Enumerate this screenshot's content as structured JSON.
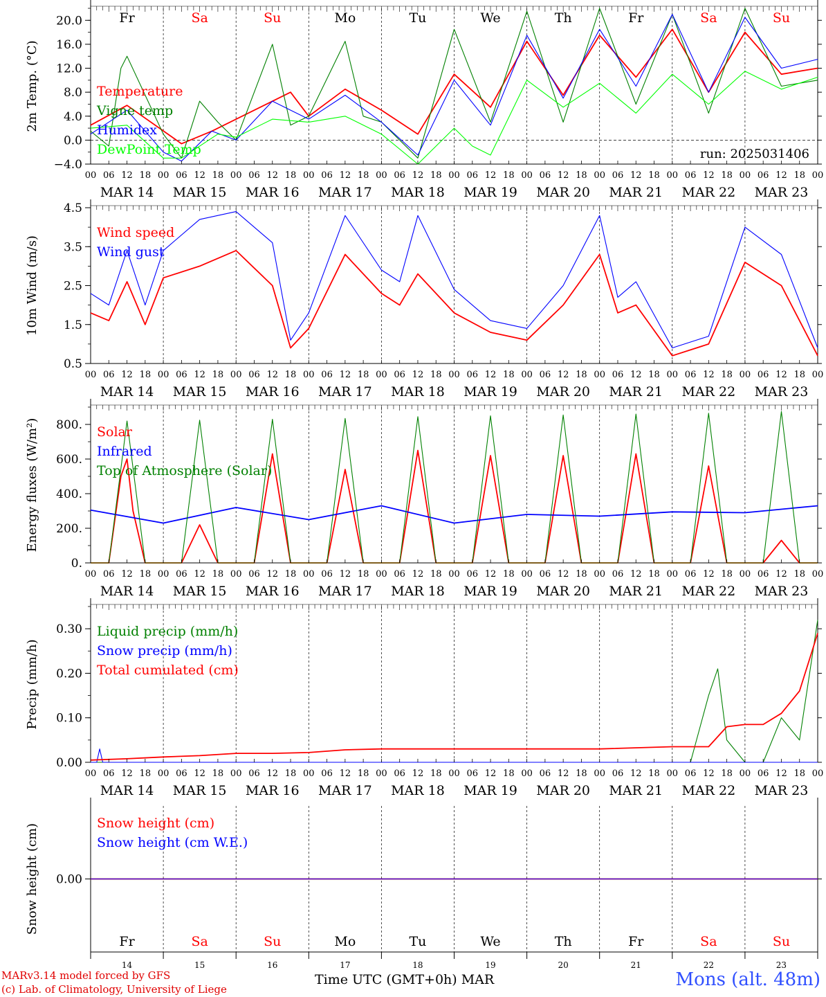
{
  "chart_data": [
    {
      "type": "line",
      "ylabel": "2m Temp. (°C)",
      "ylim": [
        -4,
        22
      ],
      "yticks": [
        "−4.0",
        "0.0",
        "4.0",
        "8.0",
        "12.0",
        "16.0",
        "20.0"
      ],
      "ytick_values": [
        -4,
        0,
        4,
        8,
        12,
        16,
        20
      ],
      "zero_line": true,
      "annotation": "run: 2025031406",
      "series": [
        {
          "name": "Temperature",
          "color": "#ff0000",
          "x": [
            0,
            12,
            30,
            40,
            66,
            72,
            84,
            96,
            108,
            120,
            132,
            144,
            156,
            168,
            180,
            192,
            204,
            216,
            228,
            240
          ],
          "y": [
            2.5,
            5.8,
            -0.6,
            1.5,
            8.0,
            4.0,
            8.5,
            5.0,
            1.0,
            11.0,
            5.5,
            16.5,
            7.5,
            17.5,
            10.5,
            18.5,
            8.0,
            18.0,
            11.0,
            12.0
          ]
        },
        {
          "name": "Vigne temp",
          "color": "#008000",
          "x": [
            0,
            6,
            10,
            12,
            24,
            30,
            36,
            42,
            48,
            60,
            66,
            72,
            84,
            90,
            96,
            108,
            120,
            132,
            144,
            156,
            168,
            180,
            192,
            204,
            216,
            228,
            240
          ],
          "y": [
            1.5,
            -1.0,
            12.0,
            14.0,
            1.0,
            -3.0,
            6.5,
            3.0,
            0.0,
            16.0,
            2.5,
            4.0,
            16.5,
            4.0,
            3.0,
            -3.0,
            18.5,
            3.0,
            21.5,
            3.0,
            22.0,
            6.0,
            21.0,
            4.5,
            22.0,
            9.0,
            10.0
          ]
        },
        {
          "name": "Humidex",
          "color": "#0000ff",
          "x": [
            0,
            12,
            24,
            30,
            40,
            48,
            60,
            66,
            72,
            84,
            96,
            108,
            120,
            132,
            144,
            156,
            168,
            180,
            192,
            204,
            216,
            228,
            240
          ],
          "y": [
            1.0,
            5.0,
            -2.0,
            -3.5,
            1.5,
            0.0,
            6.5,
            5.0,
            3.5,
            7.5,
            3.0,
            -2.5,
            10.0,
            2.5,
            17.5,
            7.0,
            18.5,
            9.0,
            21.0,
            8.0,
            20.5,
            12.0,
            13.5
          ]
        },
        {
          "name": "DewPoint Temp",
          "color": "#00ff00",
          "x": [
            0,
            12,
            24,
            30,
            42,
            48,
            60,
            72,
            84,
            96,
            108,
            120,
            126,
            132,
            144,
            156,
            168,
            180,
            192,
            204,
            216,
            228,
            240
          ],
          "y": [
            2.0,
            2.5,
            -3.0,
            -3.0,
            1.0,
            0.5,
            3.5,
            3.0,
            4.0,
            1.0,
            -4.0,
            2.0,
            -1.0,
            -2.5,
            10.0,
            5.5,
            9.5,
            4.5,
            11.0,
            6.0,
            11.5,
            8.5,
            10.5
          ]
        }
      ]
    },
    {
      "type": "line",
      "ylabel": "10m Wind (m/s)",
      "ylim": [
        0.5,
        4.5
      ],
      "yticks": [
        "0.5",
        "1.5",
        "2.5",
        "3.5",
        "4.5"
      ],
      "ytick_values": [
        0.5,
        1.5,
        2.5,
        3.5,
        4.5
      ],
      "series": [
        {
          "name": "Wind speed",
          "color": "#ff0000",
          "x": [
            0,
            6,
            12,
            18,
            24,
            36,
            48,
            60,
            66,
            72,
            84,
            96,
            102,
            108,
            120,
            132,
            144,
            156,
            168,
            174,
            180,
            192,
            204,
            216,
            228,
            240
          ],
          "y": [
            1.8,
            1.6,
            2.6,
            1.5,
            2.7,
            3.0,
            3.4,
            2.5,
            0.9,
            1.4,
            3.3,
            2.3,
            2.0,
            2.8,
            1.8,
            1.3,
            1.1,
            2.0,
            3.3,
            1.8,
            2.0,
            0.7,
            1.0,
            3.1,
            2.5,
            0.7
          ]
        },
        {
          "name": "Wind gust",
          "color": "#0000ff",
          "x": [
            0,
            6,
            12,
            18,
            24,
            36,
            48,
            60,
            66,
            72,
            84,
            96,
            102,
            108,
            120,
            132,
            144,
            156,
            168,
            174,
            180,
            192,
            204,
            216,
            228,
            240
          ],
          "y": [
            2.3,
            2.0,
            3.4,
            2.0,
            3.4,
            4.2,
            4.4,
            3.6,
            1.1,
            1.8,
            4.3,
            2.9,
            2.6,
            4.3,
            2.4,
            1.6,
            1.4,
            2.5,
            4.3,
            2.2,
            2.6,
            0.9,
            1.2,
            4.0,
            3.3,
            0.9
          ]
        }
      ]
    },
    {
      "type": "line",
      "ylabel": "Energy fluxes (W/m²)",
      "ylim": [
        0,
        900
      ],
      "yticks": [
        "0.",
        "200.",
        "400.",
        "600.",
        "800."
      ],
      "ytick_values": [
        0,
        200,
        400,
        600,
        800
      ],
      "series": [
        {
          "name": "Solar",
          "color": "#ff0000",
          "x": [
            0,
            6,
            10,
            12,
            14,
            18,
            24,
            30,
            36,
            42,
            48,
            54,
            60,
            66,
            72,
            78,
            84,
            90,
            96,
            102,
            108,
            114,
            120,
            126,
            132,
            138,
            144,
            150,
            156,
            162,
            168,
            174,
            180,
            186,
            192,
            198,
            204,
            210,
            216,
            222,
            228,
            234,
            240
          ],
          "y": [
            0,
            0,
            500,
            600,
            300,
            0,
            0,
            0,
            220,
            0,
            0,
            0,
            630,
            0,
            0,
            0,
            540,
            0,
            0,
            0,
            650,
            0,
            0,
            0,
            620,
            0,
            0,
            0,
            620,
            0,
            0,
            0,
            630,
            0,
            0,
            0,
            560,
            0,
            0,
            0,
            130,
            0,
            0
          ]
        },
        {
          "name": "Infrared",
          "color": "#0000ff",
          "x": [
            0,
            24,
            48,
            72,
            96,
            120,
            144,
            168,
            192,
            216,
            240
          ],
          "y": [
            305,
            230,
            320,
            250,
            330,
            230,
            280,
            270,
            295,
            290,
            330
          ]
        },
        {
          "name": "Top of Atmosphere (Solar)",
          "color": "#008000",
          "x": [
            0,
            6,
            12,
            18,
            24,
            30,
            36,
            42,
            48,
            54,
            60,
            66,
            72,
            78,
            84,
            90,
            96,
            102,
            108,
            114,
            120,
            126,
            132,
            138,
            144,
            150,
            156,
            162,
            168,
            174,
            180,
            186,
            192,
            198,
            204,
            210,
            216,
            222,
            228,
            234,
            240
          ],
          "y": [
            0,
            0,
            820,
            0,
            0,
            0,
            825,
            0,
            0,
            0,
            830,
            0,
            0,
            0,
            835,
            0,
            0,
            0,
            845,
            0,
            0,
            0,
            850,
            0,
            0,
            0,
            855,
            0,
            0,
            0,
            860,
            0,
            0,
            0,
            865,
            0,
            0,
            0,
            875,
            0,
            0
          ]
        }
      ]
    },
    {
      "type": "line",
      "ylabel": "Precip (mm/h)",
      "ylim": [
        0,
        0.35
      ],
      "yticks": [
        "0.00",
        "0.10",
        "0.20",
        "0.30"
      ],
      "ytick_values": [
        0,
        0.1,
        0.2,
        0.3
      ],
      "series": [
        {
          "name": "Liquid precip (mm/h)",
          "color": "#008000",
          "x": [
            0,
            198,
            204,
            207,
            210,
            216,
            222,
            228,
            234,
            240
          ],
          "y": [
            0,
            0,
            0.15,
            0.21,
            0.05,
            0,
            0,
            0.1,
            0.05,
            0.32
          ]
        },
        {
          "name": "Snow precip (mm/h)",
          "color": "#0000ff",
          "x": [
            0,
            2,
            3,
            4,
            6,
            240
          ],
          "y": [
            0,
            0,
            0.03,
            0,
            0,
            0
          ]
        },
        {
          "name": "Total cumulated (cm)",
          "color": "#ff0000",
          "x": [
            0,
            12,
            24,
            36,
            48,
            60,
            72,
            84,
            96,
            120,
            144,
            168,
            192,
            204,
            210,
            216,
            222,
            228,
            234,
            240
          ],
          "y": [
            0.005,
            0.008,
            0.012,
            0.015,
            0.02,
            0.02,
            0.022,
            0.028,
            0.03,
            0.03,
            0.03,
            0.03,
            0.035,
            0.035,
            0.08,
            0.085,
            0.085,
            0.11,
            0.16,
            0.29
          ]
        }
      ]
    },
    {
      "type": "line",
      "ylabel": "Snow height (cm)",
      "ylim": [
        -1,
        1
      ],
      "yticks": [
        "0.00"
      ],
      "ytick_values": [
        0
      ],
      "series": [
        {
          "name": "Snow height (cm)",
          "color": "#ff0000",
          "x": [
            0,
            240
          ],
          "y": [
            0,
            0
          ]
        },
        {
          "name": "Snow height (cm W.E.)",
          "color": "#0000ff",
          "x": [
            0,
            240
          ],
          "y": [
            0,
            0
          ]
        }
      ]
    }
  ],
  "axes": {
    "hour_ticks": [
      "00",
      "06",
      "12",
      "18",
      "00",
      "06",
      "12",
      "18",
      "00",
      "06",
      "12",
      "18",
      "00",
      "06",
      "12",
      "18",
      "00",
      "06",
      "12",
      "18",
      "00",
      "06",
      "12",
      "18",
      "00",
      "06",
      "12",
      "18",
      "00",
      "06",
      "12",
      "18",
      "00",
      "06",
      "12",
      "18",
      "00",
      "06",
      "12",
      "18",
      "00"
    ],
    "date_labels": [
      "MAR 14",
      "MAR 15",
      "MAR 16",
      "MAR 17",
      "MAR 18",
      "MAR 19",
      "MAR 20",
      "MAR 21",
      "MAR 22",
      "MAR 23"
    ],
    "weekdays": [
      "Fr",
      "Sa",
      "Su",
      "Mo",
      "Tu",
      "We",
      "Th",
      "Fr",
      "Sa",
      "Su"
    ],
    "weekday_colors": [
      "#000000",
      "#ff0000",
      "#ff0000",
      "#000000",
      "#000000",
      "#000000",
      "#000000",
      "#000000",
      "#ff0000",
      "#ff0000"
    ],
    "day_numbers": [
      "14",
      "15",
      "16",
      "17",
      "18",
      "19",
      "20",
      "21",
      "22",
      "23"
    ]
  },
  "footer": {
    "credit_line1": "MARv3.14 model forced by GFS",
    "credit_line2": "(c) Lab. of Climatology, University of Liege",
    "xaxis_title": "Time UTC (GMT+0h) MAR",
    "station": "Mons (alt. 48m)"
  }
}
